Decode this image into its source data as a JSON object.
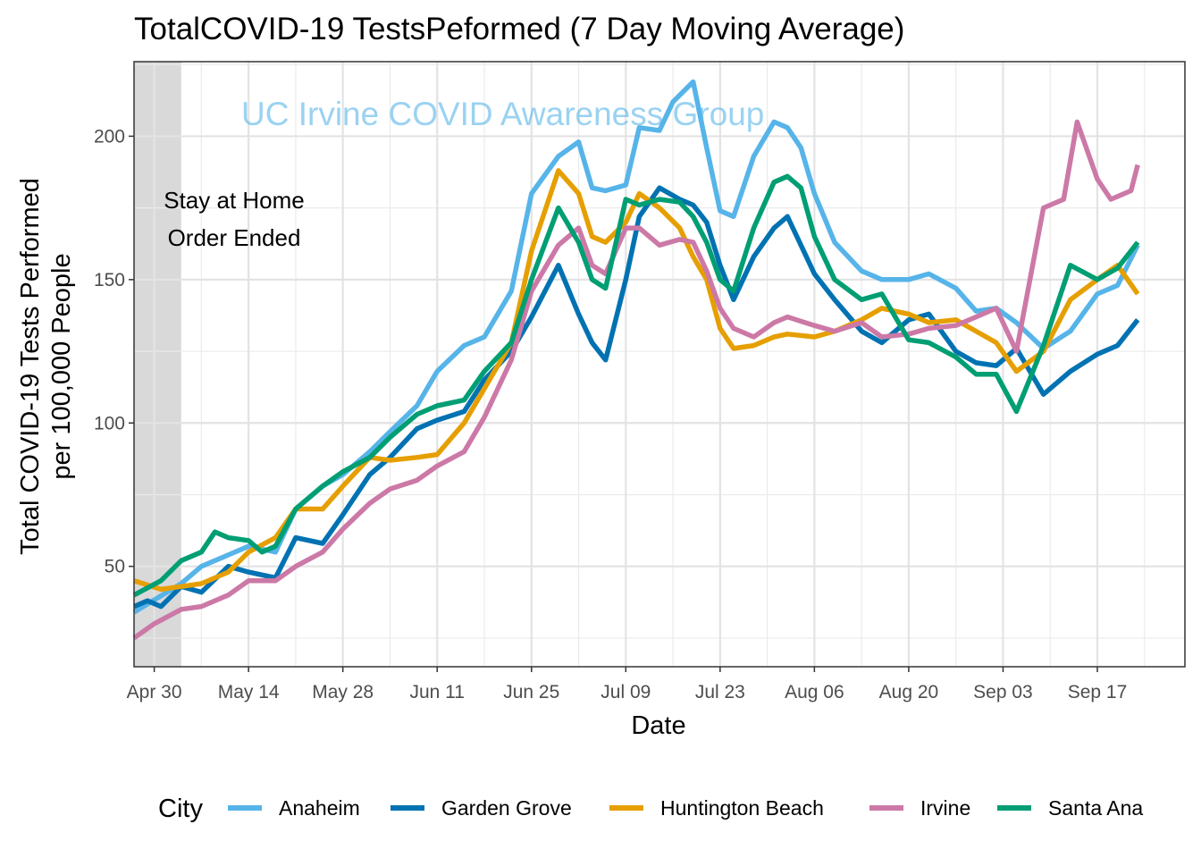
{
  "chart_data": {
    "type": "line",
    "title": "TotalCOVID-19  TestsPeformed (7 Day Moving Average)",
    "xlabel": "Date",
    "ylabel_lines": [
      "Total COVID-19 Tests Performed",
      "per 100,000 People"
    ],
    "xlim": [
      "2020-04-27",
      "2020-09-30"
    ],
    "ylim": [
      15,
      226
    ],
    "x_ticks": [
      {
        "date": "2020-04-30",
        "label": "Apr 30"
      },
      {
        "date": "2020-05-14",
        "label": "May 14"
      },
      {
        "date": "2020-05-28",
        "label": "May 28"
      },
      {
        "date": "2020-06-11",
        "label": "Jun 11"
      },
      {
        "date": "2020-06-25",
        "label": "Jun 25"
      },
      {
        "date": "2020-07-09",
        "label": "Jul 09"
      },
      {
        "date": "2020-07-23",
        "label": "Jul 23"
      },
      {
        "date": "2020-08-06",
        "label": "Aug 06"
      },
      {
        "date": "2020-08-20",
        "label": "Aug 20"
      },
      {
        "date": "2020-09-03",
        "label": "Sep 03"
      },
      {
        "date": "2020-09-17",
        "label": "Sep 17"
      }
    ],
    "y_ticks": [
      50,
      100,
      150,
      200
    ],
    "grid": true,
    "legend_position": "bottom",
    "legend_title": "City",
    "shaded_region": {
      "start": "2020-04-27",
      "end": "2020-05-04"
    },
    "annotation_lines": [
      "Stay at Home",
      "Order Ended"
    ],
    "watermark": "UC Irvine COVID Awareness Group",
    "series": [
      {
        "name": "Anaheim",
        "color": "#56B4E9",
        "points": [
          [
            "2020-04-27",
            34
          ],
          [
            "2020-05-04",
            44
          ],
          [
            "2020-05-07",
            50
          ],
          [
            "2020-05-11",
            54
          ],
          [
            "2020-05-14",
            57
          ],
          [
            "2020-05-18",
            55
          ],
          [
            "2020-05-21",
            70
          ],
          [
            "2020-05-25",
            78
          ],
          [
            "2020-05-28",
            82
          ],
          [
            "2020-06-01",
            90
          ],
          [
            "2020-06-04",
            97
          ],
          [
            "2020-06-08",
            106
          ],
          [
            "2020-06-11",
            118
          ],
          [
            "2020-06-15",
            127
          ],
          [
            "2020-06-18",
            130
          ],
          [
            "2020-06-22",
            146
          ],
          [
            "2020-06-25",
            180
          ],
          [
            "2020-06-29",
            193
          ],
          [
            "2020-07-02",
            198
          ],
          [
            "2020-07-04",
            182
          ],
          [
            "2020-07-06",
            181
          ],
          [
            "2020-07-09",
            183
          ],
          [
            "2020-07-11",
            203
          ],
          [
            "2020-07-14",
            202
          ],
          [
            "2020-07-16",
            212
          ],
          [
            "2020-07-19",
            219
          ],
          [
            "2020-07-21",
            196
          ],
          [
            "2020-07-23",
            174
          ],
          [
            "2020-07-25",
            172
          ],
          [
            "2020-07-28",
            193
          ],
          [
            "2020-07-31",
            205
          ],
          [
            "2020-08-02",
            203
          ],
          [
            "2020-08-04",
            196
          ],
          [
            "2020-08-06",
            180
          ],
          [
            "2020-08-09",
            163
          ],
          [
            "2020-08-13",
            153
          ],
          [
            "2020-08-16",
            150
          ],
          [
            "2020-08-20",
            150
          ],
          [
            "2020-08-23",
            152
          ],
          [
            "2020-08-27",
            147
          ],
          [
            "2020-08-30",
            139
          ],
          [
            "2020-09-02",
            140
          ],
          [
            "2020-09-05",
            135
          ],
          [
            "2020-09-09",
            126
          ],
          [
            "2020-09-13",
            132
          ],
          [
            "2020-09-17",
            145
          ],
          [
            "2020-09-20",
            148
          ],
          [
            "2020-09-23",
            162
          ]
        ]
      },
      {
        "name": "Garden Grove",
        "color": "#0072B2",
        "points": [
          [
            "2020-04-27",
            36
          ],
          [
            "2020-04-29",
            38
          ],
          [
            "2020-05-01",
            36
          ],
          [
            "2020-05-04",
            43
          ],
          [
            "2020-05-07",
            41
          ],
          [
            "2020-05-11",
            50
          ],
          [
            "2020-05-14",
            48
          ],
          [
            "2020-05-18",
            46
          ],
          [
            "2020-05-21",
            60
          ],
          [
            "2020-05-25",
            58
          ],
          [
            "2020-05-28",
            68
          ],
          [
            "2020-06-01",
            82
          ],
          [
            "2020-06-04",
            88
          ],
          [
            "2020-06-08",
            98
          ],
          [
            "2020-06-11",
            101
          ],
          [
            "2020-06-15",
            104
          ],
          [
            "2020-06-18",
            115
          ],
          [
            "2020-06-22",
            125
          ],
          [
            "2020-06-25",
            137
          ],
          [
            "2020-06-29",
            155
          ],
          [
            "2020-07-02",
            138
          ],
          [
            "2020-07-04",
            128
          ],
          [
            "2020-07-06",
            122
          ],
          [
            "2020-07-09",
            150
          ],
          [
            "2020-07-11",
            172
          ],
          [
            "2020-07-14",
            182
          ],
          [
            "2020-07-17",
            178
          ],
          [
            "2020-07-19",
            176
          ],
          [
            "2020-07-21",
            170
          ],
          [
            "2020-07-23",
            155
          ],
          [
            "2020-07-25",
            143
          ],
          [
            "2020-07-28",
            158
          ],
          [
            "2020-07-31",
            168
          ],
          [
            "2020-08-02",
            172
          ],
          [
            "2020-08-04",
            162
          ],
          [
            "2020-08-06",
            152
          ],
          [
            "2020-08-09",
            143
          ],
          [
            "2020-08-13",
            132
          ],
          [
            "2020-08-16",
            128
          ],
          [
            "2020-08-20",
            136
          ],
          [
            "2020-08-23",
            138
          ],
          [
            "2020-08-27",
            125
          ],
          [
            "2020-08-30",
            121
          ],
          [
            "2020-09-02",
            120
          ],
          [
            "2020-09-05",
            126
          ],
          [
            "2020-09-09",
            110
          ],
          [
            "2020-09-13",
            118
          ],
          [
            "2020-09-17",
            124
          ],
          [
            "2020-09-20",
            127
          ],
          [
            "2020-09-23",
            136
          ]
        ]
      },
      {
        "name": "Huntington Beach",
        "color": "#E69F00",
        "points": [
          [
            "2020-04-27",
            45
          ],
          [
            "2020-05-01",
            42
          ],
          [
            "2020-05-04",
            43
          ],
          [
            "2020-05-07",
            44
          ],
          [
            "2020-05-11",
            48
          ],
          [
            "2020-05-14",
            55
          ],
          [
            "2020-05-18",
            60
          ],
          [
            "2020-05-21",
            70
          ],
          [
            "2020-05-25",
            70
          ],
          [
            "2020-05-28",
            78
          ],
          [
            "2020-06-01",
            88
          ],
          [
            "2020-06-04",
            87
          ],
          [
            "2020-06-08",
            88
          ],
          [
            "2020-06-11",
            89
          ],
          [
            "2020-06-15",
            100
          ],
          [
            "2020-06-18",
            112
          ],
          [
            "2020-06-22",
            128
          ],
          [
            "2020-06-25",
            160
          ],
          [
            "2020-06-29",
            188
          ],
          [
            "2020-07-02",
            180
          ],
          [
            "2020-07-04",
            165
          ],
          [
            "2020-07-06",
            163
          ],
          [
            "2020-07-09",
            170
          ],
          [
            "2020-07-11",
            180
          ],
          [
            "2020-07-14",
            175
          ],
          [
            "2020-07-17",
            168
          ],
          [
            "2020-07-19",
            158
          ],
          [
            "2020-07-21",
            150
          ],
          [
            "2020-07-23",
            133
          ],
          [
            "2020-07-25",
            126
          ],
          [
            "2020-07-28",
            127
          ],
          [
            "2020-07-31",
            130
          ],
          [
            "2020-08-02",
            131
          ],
          [
            "2020-08-06",
            130
          ],
          [
            "2020-08-09",
            132
          ],
          [
            "2020-08-13",
            136
          ],
          [
            "2020-08-16",
            140
          ],
          [
            "2020-08-20",
            138
          ],
          [
            "2020-08-23",
            135
          ],
          [
            "2020-08-27",
            136
          ],
          [
            "2020-08-30",
            132
          ],
          [
            "2020-09-02",
            128
          ],
          [
            "2020-09-05",
            118
          ],
          [
            "2020-09-09",
            125
          ],
          [
            "2020-09-13",
            143
          ],
          [
            "2020-09-17",
            150
          ],
          [
            "2020-09-20",
            155
          ],
          [
            "2020-09-23",
            145
          ]
        ]
      },
      {
        "name": "Irvine",
        "color": "#CC79A7",
        "points": [
          [
            "2020-04-27",
            25
          ],
          [
            "2020-04-30",
            30
          ],
          [
            "2020-05-04",
            35
          ],
          [
            "2020-05-07",
            36
          ],
          [
            "2020-05-11",
            40
          ],
          [
            "2020-05-14",
            45
          ],
          [
            "2020-05-18",
            45
          ],
          [
            "2020-05-21",
            50
          ],
          [
            "2020-05-25",
            55
          ],
          [
            "2020-05-28",
            63
          ],
          [
            "2020-06-01",
            72
          ],
          [
            "2020-06-04",
            77
          ],
          [
            "2020-06-08",
            80
          ],
          [
            "2020-06-11",
            85
          ],
          [
            "2020-06-15",
            90
          ],
          [
            "2020-06-18",
            102
          ],
          [
            "2020-06-22",
            122
          ],
          [
            "2020-06-25",
            146
          ],
          [
            "2020-06-29",
            162
          ],
          [
            "2020-07-02",
            168
          ],
          [
            "2020-07-04",
            155
          ],
          [
            "2020-07-06",
            152
          ],
          [
            "2020-07-09",
            168
          ],
          [
            "2020-07-11",
            168
          ],
          [
            "2020-07-14",
            162
          ],
          [
            "2020-07-17",
            164
          ],
          [
            "2020-07-19",
            163
          ],
          [
            "2020-07-21",
            153
          ],
          [
            "2020-07-23",
            140
          ],
          [
            "2020-07-25",
            133
          ],
          [
            "2020-07-28",
            130
          ],
          [
            "2020-07-31",
            135
          ],
          [
            "2020-08-02",
            137
          ],
          [
            "2020-08-06",
            134
          ],
          [
            "2020-08-09",
            132
          ],
          [
            "2020-08-13",
            135
          ],
          [
            "2020-08-16",
            130
          ],
          [
            "2020-08-20",
            131
          ],
          [
            "2020-08-23",
            133
          ],
          [
            "2020-08-27",
            134
          ],
          [
            "2020-08-30",
            137
          ],
          [
            "2020-09-02",
            140
          ],
          [
            "2020-09-05",
            125
          ],
          [
            "2020-09-09",
            175
          ],
          [
            "2020-09-12",
            178
          ],
          [
            "2020-09-14",
            205
          ],
          [
            "2020-09-17",
            185
          ],
          [
            "2020-09-19",
            178
          ],
          [
            "2020-09-22",
            181
          ],
          [
            "2020-09-23",
            190
          ]
        ]
      },
      {
        "name": "Santa Ana",
        "color": "#009E73",
        "points": [
          [
            "2020-04-27",
            40
          ],
          [
            "2020-05-01",
            45
          ],
          [
            "2020-05-04",
            52
          ],
          [
            "2020-05-07",
            55
          ],
          [
            "2020-05-09",
            62
          ],
          [
            "2020-05-11",
            60
          ],
          [
            "2020-05-14",
            59
          ],
          [
            "2020-05-16",
            55
          ],
          [
            "2020-05-18",
            57
          ],
          [
            "2020-05-21",
            70
          ],
          [
            "2020-05-25",
            78
          ],
          [
            "2020-05-28",
            83
          ],
          [
            "2020-06-01",
            88
          ],
          [
            "2020-06-04",
            95
          ],
          [
            "2020-06-08",
            103
          ],
          [
            "2020-06-11",
            106
          ],
          [
            "2020-06-15",
            108
          ],
          [
            "2020-06-18",
            118
          ],
          [
            "2020-06-22",
            128
          ],
          [
            "2020-06-25",
            150
          ],
          [
            "2020-06-29",
            175
          ],
          [
            "2020-07-02",
            163
          ],
          [
            "2020-07-04",
            150
          ],
          [
            "2020-07-06",
            147
          ],
          [
            "2020-07-09",
            178
          ],
          [
            "2020-07-11",
            176
          ],
          [
            "2020-07-14",
            178
          ],
          [
            "2020-07-17",
            177
          ],
          [
            "2020-07-19",
            172
          ],
          [
            "2020-07-21",
            163
          ],
          [
            "2020-07-23",
            150
          ],
          [
            "2020-07-25",
            146
          ],
          [
            "2020-07-28",
            168
          ],
          [
            "2020-07-31",
            184
          ],
          [
            "2020-08-02",
            186
          ],
          [
            "2020-08-04",
            182
          ],
          [
            "2020-08-06",
            165
          ],
          [
            "2020-08-09",
            150
          ],
          [
            "2020-08-13",
            143
          ],
          [
            "2020-08-16",
            145
          ],
          [
            "2020-08-20",
            129
          ],
          [
            "2020-08-23",
            128
          ],
          [
            "2020-08-27",
            123
          ],
          [
            "2020-08-30",
            117
          ],
          [
            "2020-09-02",
            117
          ],
          [
            "2020-09-05",
            104
          ],
          [
            "2020-09-09",
            127
          ],
          [
            "2020-09-13",
            155
          ],
          [
            "2020-09-17",
            150
          ],
          [
            "2020-09-20",
            154
          ],
          [
            "2020-09-23",
            163
          ]
        ]
      }
    ]
  }
}
